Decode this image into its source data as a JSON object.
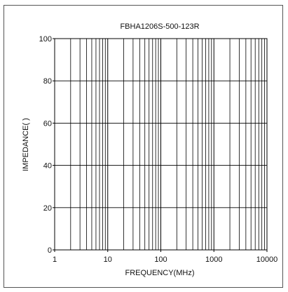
{
  "chart_data": {
    "type": "line",
    "title": "FBHA1206S-500-123R",
    "xlabel": "FREQUENCY(MHz)",
    "ylabel": "IMPEDANCE(  )",
    "x_scale": "log",
    "xlim": [
      1,
      10000
    ],
    "ylim": [
      0,
      100
    ],
    "x_tick_labels": [
      "1",
      "10",
      "100",
      "1000",
      "10000"
    ],
    "y_tick_labels": [
      "0",
      "20",
      "40",
      "60",
      "80",
      "100"
    ],
    "x_ticks": [
      1,
      10,
      100,
      1000,
      10000
    ],
    "y_ticks": [
      0,
      20,
      40,
      60,
      80,
      100
    ],
    "grid": true,
    "series": []
  }
}
